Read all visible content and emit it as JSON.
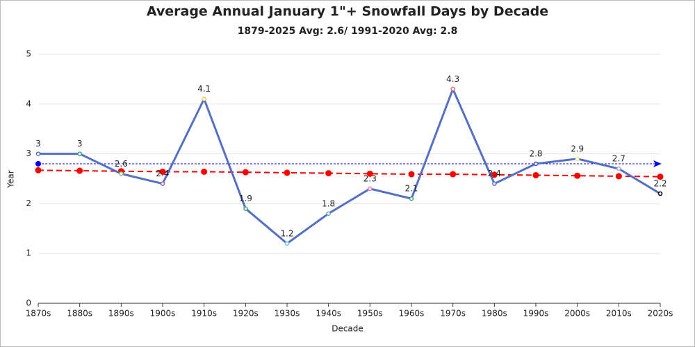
{
  "chart_data": {
    "type": "line",
    "title": "Average Annual January 1\"+ Snowfall Days by Decade",
    "subtitle": "1879-2025 Avg: 2.6/ 1991-2020 Avg: 2.8",
    "x_label": "Decade",
    "y_label": "Year",
    "categories": [
      "1870s",
      "1880s",
      "1890s",
      "1900s",
      "1910s",
      "1920s",
      "1930s",
      "1940s",
      "1950s",
      "1960s",
      "1970s",
      "1980s",
      "1990s",
      "2000s",
      "2010s",
      "2020s"
    ],
    "series": [
      {
        "color": "#5470c6",
        "style": "solid",
        "data_labels": true,
        "point_colors": [
          "#5470c6",
          "#3ba272",
          "#91cc75",
          "#9a60b4",
          "#fac858",
          "#3ba272",
          "#73c0de",
          "#5ab1a0",
          "#ea7ccc",
          "#3ba272",
          "#ee6666",
          "#5470c6",
          "#3b52c6",
          "#e8e88a",
          "#9ab1d8",
          "#000000"
        ],
        "values": [
          3,
          3,
          2.6,
          2.4,
          4.1,
          1.9,
          1.2,
          1.8,
          2.3,
          2.1,
          4.3,
          2.4,
          2.8,
          2.9,
          2.7,
          2.2
        ]
      },
      {
        "color": "#ff0000",
        "style": "dashed",
        "data_labels": false,
        "values": [
          2.67,
          2.66,
          2.65,
          2.64,
          2.64,
          2.63,
          2.62,
          2.61,
          2.6,
          2.59,
          2.59,
          2.58,
          2.57,
          2.56,
          2.55,
          2.54
        ]
      }
    ],
    "reference_line": {
      "value": 2.8,
      "color": "#0000ff"
    },
    "ylim": [
      0,
      5
    ],
    "yticks": [
      0,
      1,
      2,
      3,
      4,
      5
    ],
    "grid": true
  }
}
